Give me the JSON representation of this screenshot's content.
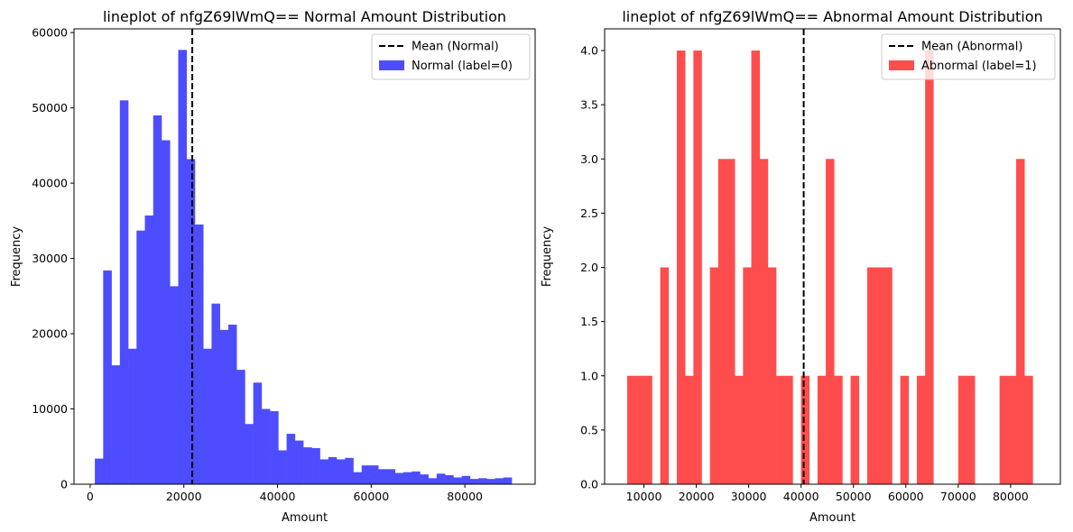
{
  "chart_data": [
    {
      "type": "bar",
      "title": "lineplot of nfgZ69lWmQ== Normal Amount Distribution",
      "xlabel": "Amount",
      "ylabel": "Frequency",
      "xlim": [
        -3450,
        95000
      ],
      "ylim": [
        0,
        60500
      ],
      "xticks": [
        0,
        20000,
        40000,
        60000,
        80000
      ],
      "yticks": [
        0,
        10000,
        20000,
        30000,
        40000,
        50000,
        60000
      ],
      "grid": false,
      "legend_position": "upper right",
      "bin_start": 1000,
      "bin_width": 1780,
      "bin_values": [
        3400,
        28400,
        15800,
        51000,
        18000,
        33700,
        35700,
        49000,
        45700,
        26300,
        57700,
        43200,
        34500,
        18000,
        24000,
        20500,
        21200,
        15200,
        8000,
        13500,
        10000,
        9700,
        4500,
        6700,
        5800,
        4900,
        4800,
        3300,
        3600,
        3300,
        3500,
        1600,
        2500,
        2500,
        2000,
        2000,
        1500,
        1600,
        1700,
        1300,
        800,
        1400,
        1200,
        900,
        1100,
        700,
        800,
        700,
        800,
        900
      ],
      "bar_color": "#4d4dff",
      "mean_value": 21800,
      "series": [
        {
          "name": "Normal (label=0)"
        },
        {
          "name": "Mean (Normal)"
        }
      ]
    },
    {
      "type": "bar",
      "title": "lineplot of nfgZ69lWmQ== Abnormal Amount Distribution",
      "xlabel": "Amount",
      "ylabel": "Frequency",
      "xlim": [
        2500,
        89500
      ],
      "ylim": [
        0,
        4.2
      ],
      "xticks": [
        10000,
        20000,
        30000,
        40000,
        50000,
        60000,
        70000,
        80000
      ],
      "yticks": [
        "0.0",
        "0.5",
        "1.0",
        "1.5",
        "2.0",
        "2.5",
        "3.0",
        "3.5",
        "4.0"
      ],
      "grid": false,
      "legend_position": "upper right",
      "bin_start": 6800,
      "bin_width": 1580,
      "bin_values": [
        1,
        1,
        1,
        0,
        2,
        0,
        4,
        1,
        4,
        0,
        2,
        3,
        3,
        1,
        2,
        4,
        3,
        2,
        1,
        1,
        0,
        1,
        0,
        1,
        3,
        1,
        0,
        1,
        0,
        2,
        2,
        2,
        0,
        1,
        0,
        1,
        4,
        0,
        0,
        0,
        1,
        1,
        0,
        0,
        0,
        1,
        1,
        3,
        1,
        0
      ],
      "bar_color": "#ff4d4d",
      "mean_value": 40500,
      "series": [
        {
          "name": "Abnormal (label=1)"
        },
        {
          "name": "Mean (Abnormal)"
        }
      ]
    }
  ]
}
